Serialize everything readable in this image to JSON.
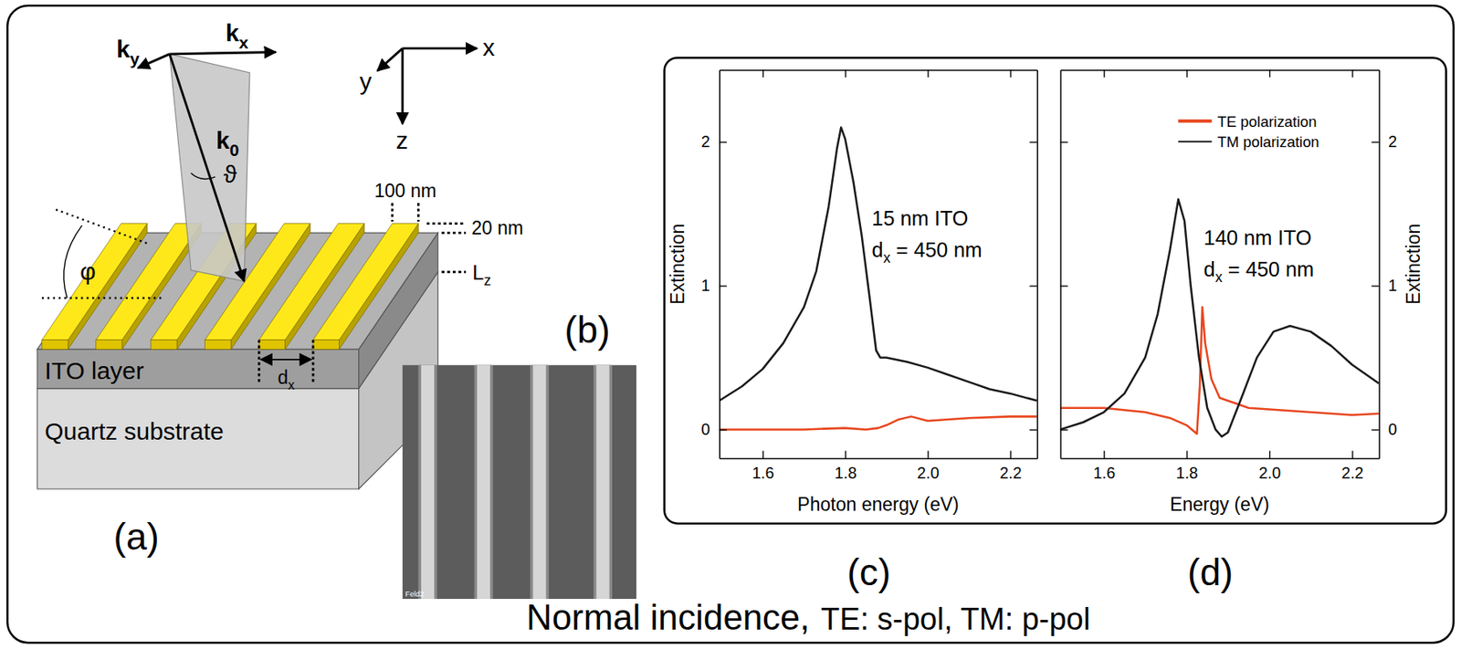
{
  "diagram": {
    "label": "(a)",
    "axes": [
      "x",
      "y",
      "z"
    ],
    "wavevectors": [
      {
        "text": "k",
        "sub": "y"
      },
      {
        "text": "k",
        "sub": "x"
      },
      {
        "text": "k",
        "sub": "0"
      }
    ],
    "angles": {
      "polar": "ϑ",
      "azimuth": "φ"
    },
    "dimensions": {
      "stripe_width": "100 nm",
      "stripe_height": "20 nm",
      "ito_thickness": {
        "text": "L",
        "sub": "z"
      },
      "period": {
        "text": "d",
        "sub": "x"
      }
    },
    "layers": [
      "ITO layer",
      "Quartz substrate"
    ]
  },
  "micrograph": {
    "label": "(b)",
    "tag": "Feld2"
  },
  "chart_data": [
    {
      "type": "line",
      "title": "(c)",
      "x_label": "Photon energy (eV)",
      "y_label": "Extinction",
      "xlim": [
        1.495,
        2.265
      ],
      "ylim": [
        -0.2,
        2.5
      ],
      "xticks": [
        1.6,
        1.8,
        {
          "value": 2,
          "label": "2.0"
        },
        2.2
      ],
      "yticks": [
        0,
        1,
        2
      ],
      "annotations": [
        {
          "text": "15 nm ITO"
        },
        {
          "text": "d",
          "sub": "x",
          "after": " = 450 nm"
        }
      ],
      "series": [
        {
          "color": "#e8461e",
          "x": [
            1.495,
            1.6,
            1.7,
            1.8,
            1.85,
            1.88,
            1.9,
            1.93,
            1.96,
            2.0,
            2.1,
            2.2,
            2.265
          ],
          "values": [
            0,
            0,
            0,
            0.01,
            0,
            0.01,
            0.03,
            0.07,
            0.09,
            0.06,
            0.08,
            0.09,
            0.09
          ]
        },
        {
          "color": "#1a1a1a",
          "x": [
            1.495,
            1.55,
            1.6,
            1.65,
            1.7,
            1.73,
            1.76,
            1.78,
            1.79,
            1.8,
            1.82,
            1.84,
            1.86,
            1.875,
            1.885,
            1.9,
            1.95,
            2.0,
            2.05,
            2.1,
            2.15,
            2.2,
            2.265
          ],
          "values": [
            0.2,
            0.3,
            0.42,
            0.6,
            0.85,
            1.1,
            1.55,
            1.95,
            2.1,
            2.02,
            1.72,
            1.35,
            0.9,
            0.55,
            0.5,
            0.5,
            0.47,
            0.43,
            0.38,
            0.33,
            0.28,
            0.25,
            0.2
          ]
        }
      ]
    },
    {
      "type": "line",
      "title": "(d)",
      "x_label": "Energy (eV)",
      "y_label": "Extinction",
      "xlim": [
        1.495,
        2.265
      ],
      "ylim": [
        -0.2,
        2.5
      ],
      "xticks": [
        1.6,
        1.8,
        {
          "value": 2,
          "label": "2.0"
        },
        2.2
      ],
      "yticks": [
        0,
        1,
        2
      ],
      "legend": "top-right",
      "annotations": [
        {
          "text": "140 nm ITO"
        },
        {
          "text": "d",
          "sub": "x",
          "after": " = 450 nm"
        }
      ],
      "series": [
        {
          "name": "TE polarization",
          "color": "#e8461e",
          "x": [
            1.495,
            1.6,
            1.7,
            1.76,
            1.8,
            1.825,
            1.832,
            1.838,
            1.845,
            1.86,
            1.88,
            1.95,
            2.05,
            2.2,
            2.265
          ],
          "values": [
            0.15,
            0.15,
            0.12,
            0.08,
            0.03,
            -0.03,
            0.3,
            0.85,
            0.6,
            0.35,
            0.22,
            0.15,
            0.13,
            0.1,
            0.11
          ]
        },
        {
          "name": "TM polarization",
          "color": "#1a1a1a",
          "x": [
            1.495,
            1.55,
            1.6,
            1.65,
            1.7,
            1.73,
            1.76,
            1.78,
            1.795,
            1.81,
            1.83,
            1.85,
            1.87,
            1.885,
            1.9,
            1.93,
            1.97,
            2.01,
            2.05,
            2.1,
            2.15,
            2.2,
            2.265
          ],
          "values": [
            0,
            0.05,
            0.12,
            0.25,
            0.5,
            0.8,
            1.25,
            1.6,
            1.45,
            1,
            0.5,
            0.15,
            0,
            -0.05,
            -0.02,
            0.2,
            0.5,
            0.68,
            0.72,
            0.68,
            0.58,
            0.45,
            0.32
          ]
        }
      ]
    }
  ],
  "caption": [
    "Normal incidence,",
    "TE: s-pol, TM: p-pol"
  ]
}
